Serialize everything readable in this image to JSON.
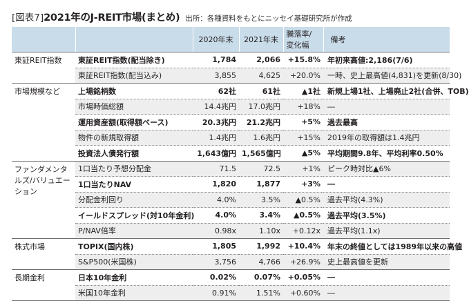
{
  "header": {
    "fig_label": "[図表7]",
    "title": "2021年のJ-REIT市場(まとめ)",
    "source": "出所：各種資料をもとにニッセイ基礎研究所が作成"
  },
  "columns": {
    "c2020": "2020年末",
    "c2021": "2021年末",
    "change_line1": "騰落率/",
    "change_line2": "変化幅",
    "note": "備考"
  },
  "groups": [
    {
      "category": "東証REIT指数",
      "rows": [
        {
          "item": "東証REIT指数(配当除き)",
          "v2020": "1,784",
          "v2021": "2,066",
          "change": "+15.8%",
          "note": "年初来高値:2,186(7/6)",
          "bold": true,
          "alt": false
        },
        {
          "item": "東証REIT指数(配当込み)",
          "v2020": "3,855",
          "v2021": "4,625",
          "change": "+20.0%",
          "note": "一時、史上最高値(4,831)を更新(8/30)",
          "bold": false,
          "alt": true
        }
      ]
    },
    {
      "category": "市場規模など",
      "rows": [
        {
          "item": "上場銘柄数",
          "v2020": "62社",
          "v2021": "61社",
          "change": "▲1社",
          "note": "新規上場1社、上場廃止2社(合併、TOB)",
          "bold": true,
          "alt": false
        },
        {
          "item": "市場時価総額",
          "v2020": "14.4兆円",
          "v2021": "17.0兆円",
          "change": "+18%",
          "note": "―",
          "bold": false,
          "alt": true
        },
        {
          "item": "運用資産額(取得額ベース)",
          "v2020": "20.3兆円",
          "v2021": "21.2兆円",
          "change": "+5%",
          "note": "過去最高",
          "bold": true,
          "alt": false
        },
        {
          "item": "物件の新規取得額",
          "v2020": "1.4兆円",
          "v2021": "1.6兆円",
          "change": "+15%",
          "note": "2019年の取得額は1.4兆円",
          "bold": false,
          "alt": true
        },
        {
          "item": "投資法人債発行額",
          "v2020": "1,643億円",
          "v2021": "1,565億円",
          "change": "▲5%",
          "note": "平均期間9.8年、平均利率0.50%",
          "bold": true,
          "alt": false
        }
      ]
    },
    {
      "category": "ファンダメンタルズ/バリュエーション",
      "rows": [
        {
          "item": "1口当たり予想分配金",
          "v2020": "71.5",
          "v2021": "72.5",
          "change": "+1%",
          "note": "ピーク時対比▲6%",
          "bold": false,
          "alt": true
        },
        {
          "item": "1口当たりNAV",
          "v2020": "1,820",
          "v2021": "1,877",
          "change": "+3%",
          "note": "―",
          "bold": true,
          "alt": false
        },
        {
          "item": "分配金利回り",
          "v2020": "4.0%",
          "v2021": "3.5%",
          "change": "▲0.5%",
          "note": "過去平均(4.3%)",
          "bold": false,
          "alt": true
        },
        {
          "item": "イールドスプレッド(対10年金利)",
          "v2020": "4.0%",
          "v2021": "3.4%",
          "change": "▲0.5%",
          "note": "過去平均(3.5%)",
          "bold": true,
          "alt": false
        },
        {
          "item": "P/NAV倍率",
          "v2020": "0.98x",
          "v2021": "1.10x",
          "change": "+0.12x",
          "note": "過去平均(1.1x)",
          "bold": false,
          "alt": true
        }
      ]
    },
    {
      "category": "株式市場",
      "rows": [
        {
          "item": "TOPIX(国内株)",
          "v2020": "1,805",
          "v2021": "1,992",
          "change": "+10.4%",
          "note": "年末の終値としては1989年以来の高値",
          "bold": true,
          "alt": false
        },
        {
          "item": "S&P500(米国株)",
          "v2020": "3,756",
          "v2021": "4,766",
          "change": "+26.9%",
          "note": "史上最高値を更新",
          "bold": false,
          "alt": true
        }
      ]
    },
    {
      "category": "長期金利",
      "rows": [
        {
          "item": "日本10年金利",
          "v2020": "0.02%",
          "v2021": "0.07%",
          "change": "+0.05%",
          "note": "―",
          "bold": true,
          "alt": false
        },
        {
          "item": "米国10年金利",
          "v2020": "0.91%",
          "v2021": "1.51%",
          "change": "+0.60%",
          "note": "―",
          "bold": false,
          "alt": true
        }
      ]
    }
  ]
}
